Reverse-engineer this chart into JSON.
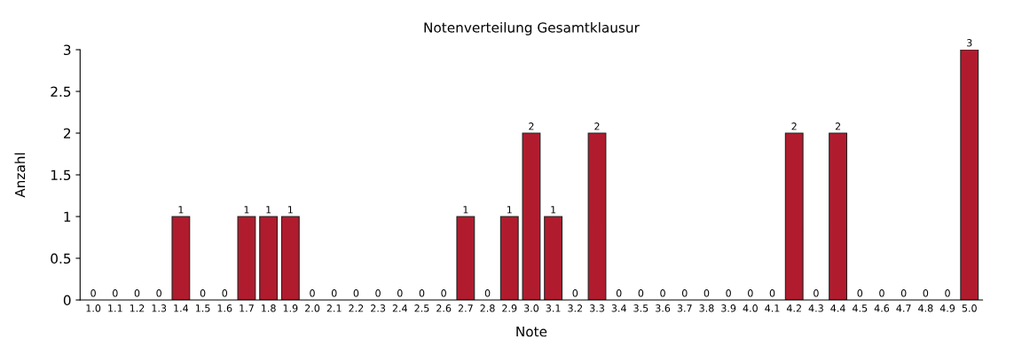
{
  "chart_data": {
    "type": "bar",
    "title": "Notenverteilung Gesamtklausur",
    "xlabel": "Note",
    "ylabel": "Anzahl",
    "categories": [
      "1.0",
      "1.1",
      "1.2",
      "1.3",
      "1.4",
      "1.5",
      "1.6",
      "1.7",
      "1.8",
      "1.9",
      "2.0",
      "2.1",
      "2.2",
      "2.3",
      "2.4",
      "2.5",
      "2.6",
      "2.7",
      "2.8",
      "2.9",
      "3.0",
      "3.1",
      "3.2",
      "3.3",
      "3.4",
      "3.5",
      "3.6",
      "3.7",
      "3.8",
      "3.9",
      "4.0",
      "4.1",
      "4.2",
      "4.3",
      "4.4",
      "4.5",
      "4.6",
      "4.7",
      "4.8",
      "4.9",
      "5.0"
    ],
    "values": [
      0,
      0,
      0,
      0,
      1,
      0,
      0,
      1,
      1,
      1,
      0,
      0,
      0,
      0,
      0,
      0,
      0,
      1,
      0,
      1,
      2,
      1,
      0,
      2,
      0,
      0,
      0,
      0,
      0,
      0,
      0,
      0,
      2,
      0,
      2,
      0,
      0,
      0,
      0,
      0,
      3
    ],
    "color": "#b01c2e",
    "ylim": [
      0,
      3
    ],
    "yticks": [
      0,
      {
        "value": 0.5,
        "label": "0.5"
      },
      1,
      {
        "value": 1.5,
        "label": "1.5"
      },
      2,
      {
        "value": 2.5,
        "label": "2.5"
      },
      3
    ],
    "data_labels": true,
    "grid": false,
    "legend": false
  }
}
